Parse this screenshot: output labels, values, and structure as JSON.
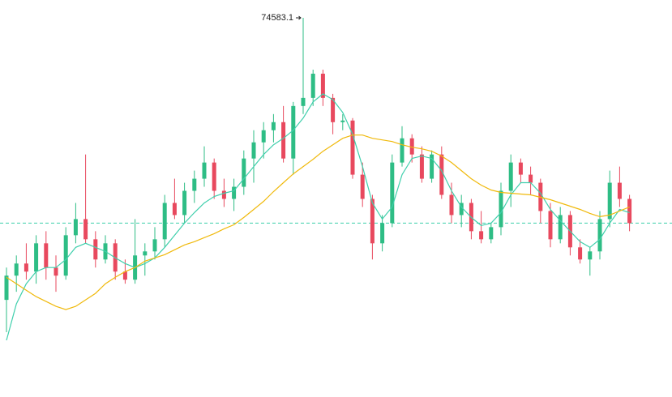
{
  "chart_data": {
    "type": "candlestick",
    "up_color": "#2ebd85",
    "down_color": "#e8495e",
    "open": [
      67600,
      68200,
      68500,
      68300,
      69000,
      68400,
      68200,
      69200,
      69600,
      69100,
      68600,
      69000,
      68300,
      68100,
      68700,
      68800,
      69100,
      70000,
      69700,
      70300,
      70600,
      71000,
      70300,
      70100,
      70400,
      71100,
      71500,
      71800,
      72000,
      71100,
      72400,
      72600,
      73200,
      72600,
      72000,
      72040,
      70700,
      70100,
      69000,
      69500,
      71000,
      71600,
      71200,
      70600,
      71200,
      70200,
      69700,
      70000,
      69300,
      69100,
      69400,
      70300,
      71000,
      70700,
      70500,
      69800,
      69100,
      69700,
      68900,
      68600,
      68800,
      69600,
      70500,
      70100
    ],
    "high": [
      68400,
      68700,
      69000,
      69200,
      69300,
      68700,
      69400,
      70000,
      71200,
      69300,
      69200,
      69100,
      68600,
      69600,
      69000,
      69400,
      70200,
      70600,
      70500,
      70800,
      71400,
      71100,
      70600,
      70600,
      71300,
      71800,
      72000,
      72200,
      72400,
      72500,
      74583.1,
      73300,
      73300,
      72700,
      72200,
      72100,
      71000,
      70200,
      69700,
      71200,
      71900,
      71700,
      71400,
      71300,
      71400,
      70500,
      70200,
      70100,
      69800,
      69500,
      70500,
      71200,
      71100,
      70900,
      70600,
      70000,
      69900,
      69800,
      69100,
      68900,
      69800,
      70800,
      70900,
      70200
    ],
    "low": [
      66800,
      67800,
      68100,
      68000,
      68100,
      67800,
      68100,
      69000,
      69000,
      68400,
      68500,
      68100,
      68000,
      68000,
      68200,
      68600,
      68900,
      69600,
      69500,
      70000,
      70400,
      70100,
      69900,
      69800,
      70200,
      70500,
      71100,
      71500,
      71000,
      70700,
      72200,
      72400,
      72400,
      71700,
      71800,
      70600,
      69900,
      68600,
      68800,
      69400,
      70900,
      71000,
      70500,
      70500,
      70100,
      69500,
      69400,
      69100,
      69000,
      69000,
      69200,
      69900,
      70500,
      70200,
      69500,
      68900,
      69000,
      68700,
      68500,
      68200,
      68600,
      69400,
      69900,
      69300
    ],
    "close": [
      68200,
      68500,
      68300,
      69000,
      68400,
      68200,
      69200,
      69600,
      69100,
      68600,
      69000,
      68300,
      68100,
      68700,
      68800,
      69100,
      70000,
      69700,
      70300,
      70600,
      71000,
      70300,
      70100,
      70400,
      71100,
      71500,
      71800,
      72000,
      71100,
      72400,
      72600,
      73200,
      72600,
      72000,
      72040,
      70700,
      70100,
      69000,
      69500,
      71000,
      71600,
      71200,
      70600,
      71200,
      70200,
      69700,
      70000,
      69300,
      69100,
      69400,
      70300,
      71000,
      70700,
      70500,
      69800,
      69100,
      69700,
      68900,
      68600,
      68800,
      69600,
      70500,
      70100,
      69500
    ],
    "series": [
      {
        "color": "#3fcfac",
        "values": [
          66600,
          67500,
          68000,
          68300,
          68400,
          68400,
          68600,
          68900,
          69000,
          68900,
          68800,
          68640,
          68500,
          68400,
          68500,
          68640,
          68900,
          69200,
          69500,
          69760,
          70000,
          70160,
          70240,
          70300,
          70600,
          70900,
          71200,
          71440,
          71600,
          71800,
          72100,
          72500,
          72700,
          72560,
          72240,
          71700,
          70900,
          70000,
          69600,
          69900,
          70700,
          71100,
          71160,
          71100,
          70800,
          70300,
          69900,
          69640,
          69440,
          69500,
          69760,
          70200,
          70500,
          70500,
          70240,
          69840,
          69560,
          69300,
          69040,
          68900,
          69100,
          69500,
          69840,
          69760
        ]
      },
      {
        "color": "#f0b90b",
        "values": [
          68160,
          68000,
          67840,
          67680,
          67560,
          67440,
          67360,
          67440,
          67600,
          67760,
          68000,
          68160,
          68300,
          68400,
          68560,
          68640,
          68720,
          68840,
          68960,
          69040,
          69140,
          69240,
          69360,
          69460,
          69640,
          69840,
          70040,
          70280,
          70500,
          70720,
          70900,
          71080,
          71280,
          71440,
          71600,
          71680,
          71680,
          71600,
          71560,
          71520,
          71440,
          71380,
          71340,
          71280,
          71160,
          71000,
          70800,
          70600,
          70440,
          70320,
          70260,
          70240,
          70220,
          70200,
          70140,
          70080,
          70000,
          69920,
          69840,
          69740,
          69660,
          69700,
          69800,
          69900
        ]
      }
    ],
    "last_price_color": "#3fcfac"
  }
}
